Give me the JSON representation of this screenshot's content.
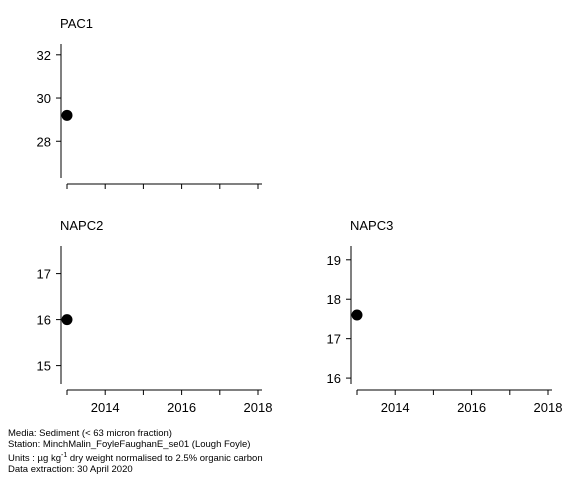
{
  "chart_data": [
    {
      "type": "scatter",
      "title": "PAC1",
      "x": [
        2013
      ],
      "y": [
        29.2
      ],
      "xlim": [
        2012.9,
        2018.4
      ],
      "ylim": [
        26.3,
        32.5
      ],
      "yticks": [
        28,
        30,
        32
      ],
      "xticks": [],
      "xminor": [
        2013,
        2014,
        2015,
        2016,
        2017,
        2018
      ],
      "color": "#000000"
    },
    {
      "type": "scatter",
      "title": "NAPC2",
      "x": [
        2013
      ],
      "y": [
        16.0
      ],
      "xlim": [
        2012.9,
        2018.4
      ],
      "ylim": [
        14.6,
        17.6
      ],
      "yticks": [
        15,
        16,
        17
      ],
      "xticks": [
        2014,
        2016,
        2018
      ],
      "xminor": [
        2013,
        2014,
        2015,
        2016,
        2017,
        2018
      ],
      "color": "#000000"
    },
    {
      "type": "scatter",
      "title": "NAPC3",
      "x": [
        2013
      ],
      "y": [
        17.6
      ],
      "xlim": [
        2012.9,
        2018.4
      ],
      "ylim": [
        15.85,
        19.35
      ],
      "yticks": [
        16,
        17,
        18,
        19
      ],
      "xticks": [
        2014,
        2016,
        2018
      ],
      "xminor": [
        2013,
        2014,
        2015,
        2016,
        2017,
        2018
      ],
      "color": "#000000"
    }
  ],
  "footer": {
    "media": "Media: Sediment (< 63 micron fraction)",
    "station": "Station: MinchMalin_FoyleFaughanE_se01 (Lough Foyle)",
    "units_prefix": "Units : µg kg",
    "units_exp": "-1",
    "units_suffix": " dry weight normalised to 2.5% organic carbon",
    "extraction": "Data extraction: 30 April 2020"
  }
}
